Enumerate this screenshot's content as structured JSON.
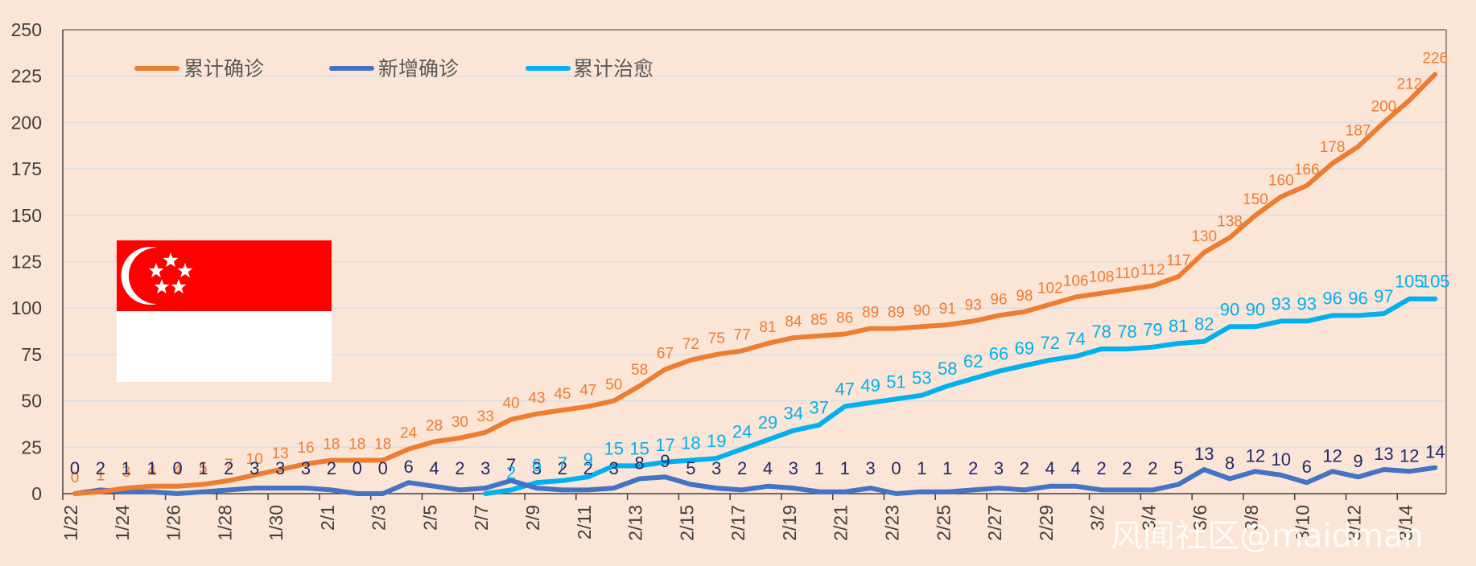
{
  "chart_data": {
    "type": "line",
    "ylim": [
      0,
      250
    ],
    "yticks": [
      0,
      25,
      50,
      75,
      100,
      125,
      150,
      175,
      200,
      225,
      250
    ],
    "x_tick_labels": [
      "1/22",
      "1/24",
      "1/26",
      "1/28",
      "1/30",
      "2/1",
      "2/3",
      "2/5",
      "2/7",
      "2/9",
      "2/11",
      "2/13",
      "2/15",
      "2/17",
      "2/19",
      "2/21",
      "2/23",
      "2/25",
      "2/27",
      "2/29",
      "3/2",
      "3/4",
      "3/6",
      "3/8",
      "3/10",
      "3/12",
      "3/14"
    ],
    "series": [
      {
        "name": "累计确诊",
        "color": "#ed7d31",
        "values": [
          0,
          1,
          3,
          4,
          4,
          5,
          7,
          10,
          13,
          16,
          18,
          18,
          18,
          24,
          28,
          30,
          33,
          40,
          43,
          45,
          47,
          50,
          58,
          67,
          72,
          75,
          77,
          81,
          84,
          85,
          86,
          89,
          89,
          90,
          91,
          93,
          96,
          98,
          102,
          106,
          108,
          110,
          112,
          117,
          130,
          138,
          150,
          160,
          166,
          178,
          187,
          200,
          212,
          226
        ]
      },
      {
        "name": "新增确诊",
        "color": "#4472c4",
        "values": [
          0,
          2,
          1,
          1,
          0,
          1,
          2,
          3,
          3,
          3,
          2,
          0,
          0,
          6,
          4,
          2,
          3,
          7,
          3,
          2,
          2,
          3,
          8,
          9,
          5,
          3,
          2,
          4,
          3,
          1,
          1,
          3,
          0,
          1,
          1,
          2,
          3,
          2,
          4,
          4,
          2,
          2,
          2,
          5,
          13,
          8,
          12,
          10,
          6,
          12,
          9,
          13,
          12,
          14
        ]
      },
      {
        "name": "累计治愈",
        "color": "#00b0f0",
        "values": [
          null,
          null,
          null,
          null,
          null,
          null,
          null,
          null,
          null,
          null,
          null,
          null,
          null,
          null,
          null,
          null,
          0,
          2,
          6,
          7,
          9,
          15,
          15,
          17,
          18,
          19,
          24,
          29,
          34,
          37,
          47,
          49,
          51,
          53,
          58,
          62,
          66,
          69,
          72,
          74,
          78,
          78,
          79,
          81,
          82,
          90,
          90,
          93,
          93,
          96,
          96,
          97,
          105,
          105
        ]
      }
    ]
  },
  "watermark": "风闻社区@maidman",
  "flag": {
    "top_color": "#ff0000",
    "bottom_color": "#ffffff"
  }
}
